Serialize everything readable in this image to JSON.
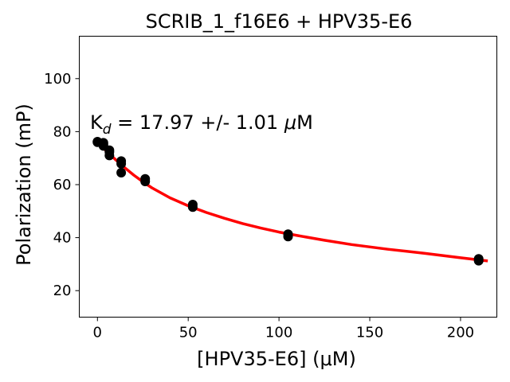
{
  "chart_data": {
    "type": "scatter",
    "title": "SCRIB_1_f16E6 + HPV35-E6",
    "xlabel": "[HPV35-E6] (μM)",
    "ylabel": "Polarization (mP)",
    "xlim": [
      -10,
      220
    ],
    "ylim": [
      10,
      116
    ],
    "x_ticks": [
      0,
      50,
      100,
      150,
      200
    ],
    "y_ticks": [
      20,
      40,
      60,
      80,
      100
    ],
    "grid": false,
    "annotation": {
      "prefix": "K",
      "subscript": "d",
      "value": " = 17.97 +/- 1.01 ",
      "unit_mu": "μ",
      "unit": "M"
    },
    "series": [
      {
        "kind": "points",
        "color": "#000000",
        "x": [
          0,
          0,
          3.3,
          3.3,
          3.3,
          6.6,
          6.6,
          6.6,
          13.1,
          13.1,
          13.1,
          26.3,
          26.3,
          52.5,
          52.5,
          105,
          105,
          210,
          210
        ],
        "y": [
          76.2,
          76.0,
          75.8,
          75.2,
          74.6,
          73.0,
          72.3,
          71.0,
          68.9,
          67.9,
          64.5,
          62.2,
          61.2,
          52.5,
          51.5,
          41.3,
          40.4,
          32.0,
          31.3
        ]
      },
      {
        "kind": "fit",
        "color": "#ff0000",
        "x": [
          0,
          5,
          10,
          15,
          20,
          25,
          30,
          40,
          50,
          60,
          70,
          80,
          90,
          100,
          110,
          125,
          140,
          160,
          180,
          200,
          215
        ],
        "y": [
          76.0,
          72.6,
          69.4,
          66.4,
          63.6,
          61.1,
          58.8,
          55.0,
          52.0,
          49.5,
          47.3,
          45.3,
          43.6,
          42.1,
          40.8,
          39.0,
          37.4,
          35.6,
          34.1,
          32.4,
          31.2
        ]
      }
    ]
  }
}
